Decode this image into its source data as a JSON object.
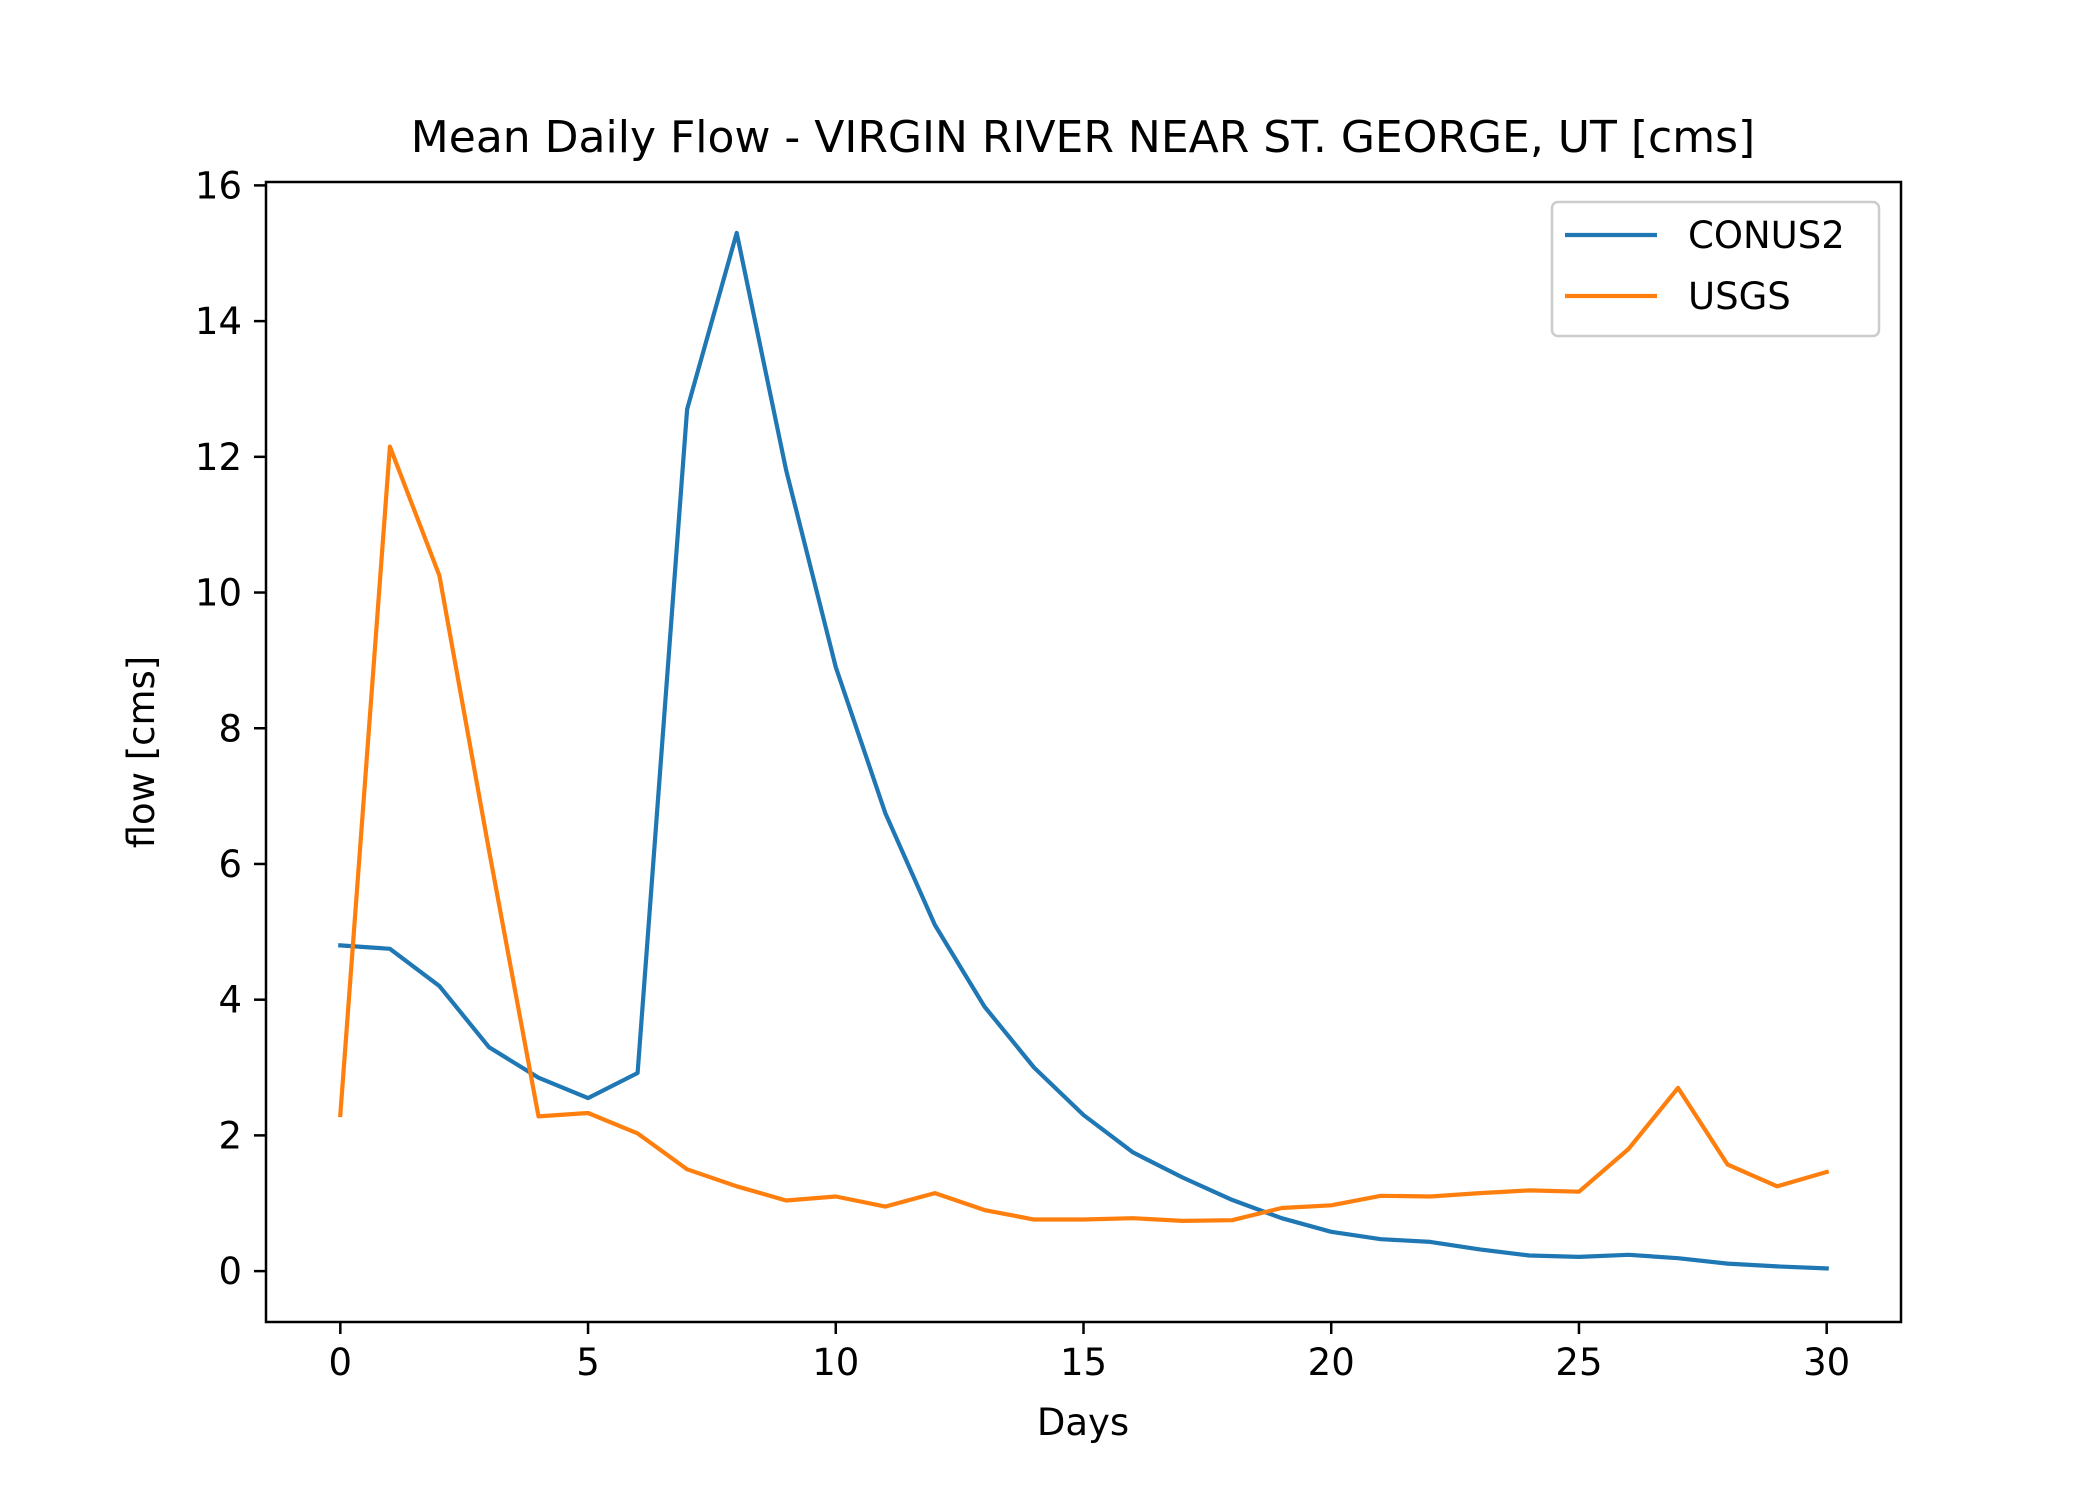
{
  "chart_data": {
    "type": "line",
    "title": "Mean Daily Flow - VIRGIN RIVER NEAR ST. GEORGE, UT [cms]",
    "xlabel": "Days",
    "ylabel": "flow [cms]",
    "xlim": [
      -1.5,
      31.5
    ],
    "ylim": [
      -0.75,
      16.05
    ],
    "xticks": [
      0,
      5,
      10,
      15,
      20,
      25,
      30
    ],
    "yticks": [
      0,
      2,
      4,
      6,
      8,
      10,
      12,
      14,
      16
    ],
    "grid": false,
    "legend_position": "top-right",
    "x": [
      0,
      1,
      2,
      3,
      4,
      5,
      6,
      7,
      8,
      9,
      10,
      11,
      12,
      13,
      14,
      15,
      16,
      17,
      18,
      19,
      20,
      21,
      22,
      23,
      24,
      25,
      26,
      27,
      28,
      29,
      30
    ],
    "series": [
      {
        "name": "CONUS2",
        "color": "#1f77b4",
        "values": [
          4.8,
          4.75,
          4.2,
          3.3,
          2.85,
          2.55,
          2.92,
          12.7,
          15.3,
          11.8,
          8.9,
          6.75,
          5.1,
          3.9,
          3.0,
          2.3,
          1.75,
          1.38,
          1.05,
          0.78,
          0.58,
          0.47,
          0.43,
          0.32,
          0.23,
          0.21,
          0.24,
          0.19,
          0.11,
          0.07,
          0.04
        ]
      },
      {
        "name": "USGS",
        "color": "#ff7f0e",
        "values": [
          2.3,
          12.15,
          10.25,
          6.2,
          2.28,
          2.33,
          2.03,
          1.5,
          1.25,
          1.04,
          1.1,
          0.95,
          1.15,
          0.9,
          0.76,
          0.76,
          0.78,
          0.74,
          0.75,
          0.93,
          0.97,
          1.11,
          1.1,
          1.15,
          1.19,
          1.17,
          1.8,
          2.7,
          1.57,
          1.25,
          1.46
        ]
      }
    ]
  }
}
